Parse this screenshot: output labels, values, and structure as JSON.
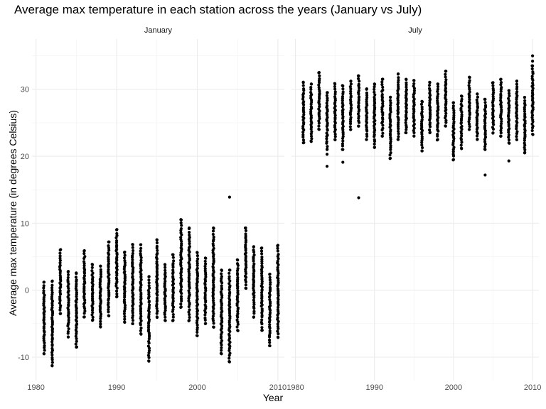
{
  "chart_data": {
    "type": "scatter",
    "title": "Average max temperature in each station across the years (January vs July)",
    "xlabel": "Year",
    "ylabel": "Average max temperature (in degrees Celsius)",
    "xlim": [
      1979.5,
      2010.8
    ],
    "ylim": [
      -13.5,
      37.5
    ],
    "xticks": [
      1980,
      1990,
      2000,
      2010
    ],
    "xtick_labels": [
      "1980",
      "1990",
      "2000",
      "2010"
    ],
    "yticks": [
      -10,
      0,
      10,
      20,
      30
    ],
    "ytick_labels": [
      "-10",
      "0",
      "10",
      "20",
      "30"
    ],
    "grid": true,
    "facets": [
      {
        "label": "January",
        "ranges": [
          {
            "x": 1981,
            "min": -9.5,
            "max": 1.2
          },
          {
            "x": 1982,
            "min": -11.3,
            "max": 1.3
          },
          {
            "x": 1983,
            "min": -3.5,
            "max": 6.0
          },
          {
            "x": 1984,
            "min": -7.0,
            "max": 2.8
          },
          {
            "x": 1985,
            "min": -8.5,
            "max": 2.5
          },
          {
            "x": 1986,
            "min": -4.0,
            "max": 5.9
          },
          {
            "x": 1987,
            "min": -4.5,
            "max": 3.8
          },
          {
            "x": 1988,
            "min": -5.5,
            "max": 3.6
          },
          {
            "x": 1989,
            "min": -3.8,
            "max": 7.2
          },
          {
            "x": 1990,
            "min": -1.0,
            "max": 9.0
          },
          {
            "x": 1991,
            "min": -4.8,
            "max": 5.7
          },
          {
            "x": 1992,
            "min": -5.0,
            "max": 6.8
          },
          {
            "x": 1993,
            "min": -6.5,
            "max": 6.8
          },
          {
            "x": 1994,
            "min": -10.6,
            "max": 2.0
          },
          {
            "x": 1995,
            "min": -4.0,
            "max": 7.5
          },
          {
            "x": 1996,
            "min": -4.5,
            "max": 3.8
          },
          {
            "x": 1997,
            "min": -4.5,
            "max": 5.3
          },
          {
            "x": 1998,
            "min": -2.5,
            "max": 10.5
          },
          {
            "x": 1999,
            "min": -4.5,
            "max": 9.2
          },
          {
            "x": 2000,
            "min": -6.8,
            "max": 5.6
          },
          {
            "x": 2001,
            "min": -5.0,
            "max": 4.8
          },
          {
            "x": 2002,
            "min": -5.5,
            "max": 9.3
          },
          {
            "x": 2003,
            "min": -9.5,
            "max": 3.0
          },
          {
            "x": 2004,
            "min": -10.7,
            "max": 3.0
          },
          {
            "x": 2005,
            "min": -6.0,
            "max": 4.5
          },
          {
            "x": 2006,
            "min": 0.3,
            "max": 9.3
          },
          {
            "x": 2007,
            "min": -4.0,
            "max": 6.5
          },
          {
            "x": 2008,
            "min": -6.0,
            "max": 6.3
          },
          {
            "x": 2009,
            "min": -8.3,
            "max": 2.4
          },
          {
            "x": 2010,
            "min": -7.0,
            "max": 6.7
          }
        ],
        "outliers": [
          {
            "x": 2004,
            "y": 13.9
          },
          {
            "x": 1998,
            "y": 10.5
          },
          {
            "x": 1999,
            "y": 9.3
          }
        ]
      },
      {
        "label": "July",
        "ranges": [
          {
            "x": 1981,
            "min": 22.0,
            "max": 31.0
          },
          {
            "x": 1982,
            "min": 22.2,
            "max": 30.8
          },
          {
            "x": 1983,
            "min": 24.0,
            "max": 32.5
          },
          {
            "x": 1984,
            "min": 21.0,
            "max": 29.5
          },
          {
            "x": 1985,
            "min": 22.5,
            "max": 30.8
          },
          {
            "x": 1986,
            "min": 21.0,
            "max": 30.5
          },
          {
            "x": 1987,
            "min": 24.0,
            "max": 31.2
          },
          {
            "x": 1988,
            "min": 24.5,
            "max": 32.0
          },
          {
            "x": 1989,
            "min": 22.5,
            "max": 30.0
          },
          {
            "x": 1990,
            "min": 21.3,
            "max": 30.8
          },
          {
            "x": 1991,
            "min": 23.0,
            "max": 31.5
          },
          {
            "x": 1992,
            "min": 19.7,
            "max": 28.8
          },
          {
            "x": 1993,
            "min": 22.5,
            "max": 32.3
          },
          {
            "x": 1994,
            "min": 23.5,
            "max": 31.5
          },
          {
            "x": 1995,
            "min": 23.0,
            "max": 31.3
          },
          {
            "x": 1996,
            "min": 20.8,
            "max": 28.2
          },
          {
            "x": 1997,
            "min": 23.5,
            "max": 31.0
          },
          {
            "x": 1998,
            "min": 22.5,
            "max": 30.8
          },
          {
            "x": 1999,
            "min": 24.5,
            "max": 32.7
          },
          {
            "x": 2000,
            "min": 19.5,
            "max": 28.0
          },
          {
            "x": 2001,
            "min": 21.2,
            "max": 29.0
          },
          {
            "x": 2002,
            "min": 24.0,
            "max": 31.8
          },
          {
            "x": 2003,
            "min": 22.5,
            "max": 29.3
          },
          {
            "x": 2004,
            "min": 21.0,
            "max": 28.5
          },
          {
            "x": 2005,
            "min": 23.5,
            "max": 31.0
          },
          {
            "x": 2006,
            "min": 23.0,
            "max": 31.5
          },
          {
            "x": 2007,
            "min": 22.0,
            "max": 29.8
          },
          {
            "x": 2008,
            "min": 22.5,
            "max": 31.2
          },
          {
            "x": 2009,
            "min": 20.5,
            "max": 28.8
          },
          {
            "x": 2010,
            "min": 23.3,
            "max": 33.5
          }
        ],
        "outliers": [
          {
            "x": 1984,
            "y": 18.5
          },
          {
            "x": 1984,
            "y": 20.3
          },
          {
            "x": 1986,
            "y": 19.1
          },
          {
            "x": 1988,
            "y": 13.8
          },
          {
            "x": 2004,
            "y": 17.2
          },
          {
            "x": 2007,
            "y": 19.3
          },
          {
            "x": 2010,
            "y": 35.0
          },
          {
            "x": 2010,
            "y": 34.2
          }
        ]
      }
    ]
  }
}
